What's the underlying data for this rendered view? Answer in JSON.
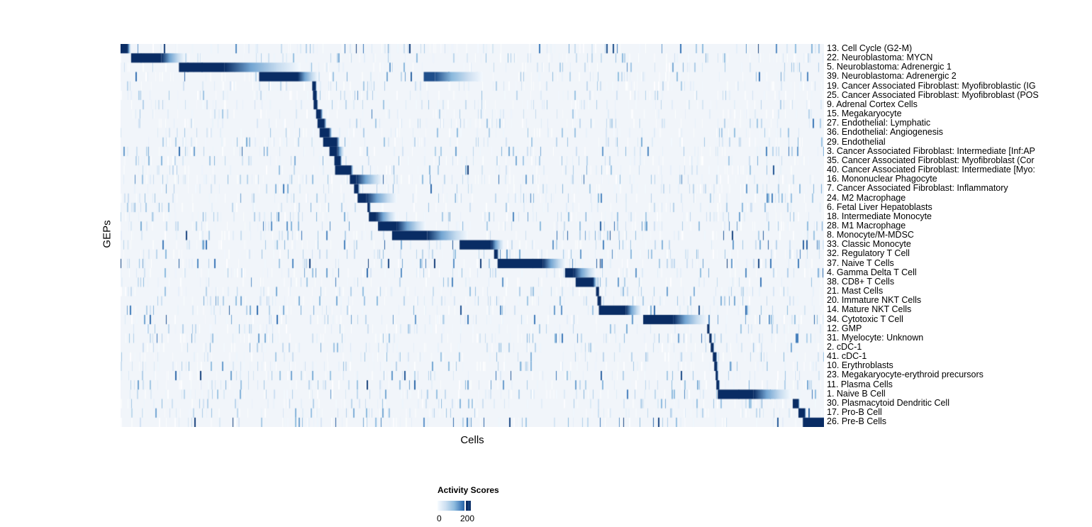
{
  "chart_data": {
    "type": "heatmap",
    "title": "",
    "xlabel": "Cells",
    "ylabel": "GEPs",
    "legend": {
      "title": "Activity Scores",
      "min_label": "0",
      "max_label": "200",
      "tick_values": [
        0,
        200
      ],
      "position": "bottom"
    },
    "colormap": {
      "name": "Blues",
      "low": "#f7fbff",
      "mid": "#8fbcdf",
      "high": "#092c64",
      "plot_background": "#f1f5fa"
    },
    "axes": {
      "grid": false,
      "x_ticks": [],
      "y_ticks": []
    },
    "rows": [
      {
        "label": "13. Cell Cycle (G2-M)",
        "block": [
          0.0,
          0.01,
          0.015
        ],
        "noise": 1.7
      },
      {
        "label": "22. Neuroblastoma: MYCN",
        "block": [
          0.015,
          0.058,
          0.092
        ],
        "noise": 0.9
      },
      {
        "label": "5. Neuroblastoma: Adrenergic 1",
        "block": [
          0.083,
          0.148,
          0.255
        ],
        "noise": 1.1
      },
      {
        "label": "39. Neuroblastoma: Adrenergic 2",
        "block": [
          0.197,
          0.252,
          0.281
        ],
        "noise": 1.3,
        "block2": [
          0.431,
          0.447,
          0.515
        ],
        "block2_v": 0.88
      },
      {
        "label": "19. Cancer Associated Fibroblast: Myofibroblastic (IG",
        "block": [
          0.2725,
          0.2775,
          0.279
        ],
        "noise": 0.7
      },
      {
        "label": "25. Cancer Associated Fibroblast: Myofibroblast (POS",
        "block": [
          0.2735,
          0.2785,
          0.28
        ],
        "noise": 0.8
      },
      {
        "label": "9. Adrenal Cortex Cells",
        "block": [
          0.2745,
          0.2795,
          0.281
        ],
        "noise": 0.7
      },
      {
        "label": "15. Megakaryocyte",
        "block": [
          0.278,
          0.285,
          0.288
        ],
        "noise": 0.7
      },
      {
        "label": "27. Endothelial: Lymphatic",
        "block": [
          0.28,
          0.29,
          0.293
        ],
        "noise": 0.8
      },
      {
        "label": "36. Endothelial: Angiogenesis",
        "block": [
          0.283,
          0.297,
          0.301
        ],
        "noise": 0.8
      },
      {
        "label": "29. Endothelial",
        "block": [
          0.288,
          0.308,
          0.312
        ],
        "noise": 0.9
      },
      {
        "label": "3. Cancer Associated Fibroblast: Intermediate [Inf:AP",
        "block": [
          0.297,
          0.308,
          0.318
        ],
        "noise": 1.3
      },
      {
        "label": "35. Cancer Associated Fibroblast: Myofibroblast (Cor",
        "block": [
          0.304,
          0.3125,
          0.315
        ],
        "noise": 0.9
      },
      {
        "label": "40. Cancer Associated Fibroblast: Intermediate [Myo:",
        "block": [
          0.305,
          0.328,
          0.331
        ],
        "noise": 0.9
      },
      {
        "label": "16. Mononuclear Phagocyte",
        "block": [
          0.326,
          0.335,
          0.373
        ],
        "noise": 1.2
      },
      {
        "label": "7. Cancer Associated Fibroblast: Inflammatory",
        "block": [
          0.332,
          0.338,
          0.34
        ],
        "noise": 1.0
      },
      {
        "label": "24. M2 Macrophage",
        "block": [
          0.337,
          0.349,
          0.393
        ],
        "noise": 1.2
      },
      {
        "label": "6. Fetal Liver Hepatoblasts",
        "block": [
          0.351,
          0.354,
          0.356
        ],
        "noise": 0.9
      },
      {
        "label": "18. Intermediate Monocyte",
        "block": [
          0.353,
          0.363,
          0.392
        ],
        "noise": 1.3
      },
      {
        "label": "28. M1 Macrophage",
        "block": [
          0.366,
          0.393,
          0.434
        ],
        "noise": 1.3
      },
      {
        "label": "8. Monocyte/M-MDSC",
        "block": [
          0.386,
          0.436,
          0.494
        ],
        "noise": 1.5
      },
      {
        "label": "33. Classic Monocyte",
        "block": [
          0.482,
          0.527,
          0.545
        ],
        "noise": 1.4
      },
      {
        "label": "32. Regulatory T Cell",
        "block": [
          0.531,
          0.536,
          0.538
        ],
        "noise": 1.2
      },
      {
        "label": "37. Naive T Cells",
        "block": [
          0.536,
          0.6,
          0.633
        ],
        "noise": 1.6
      },
      {
        "label": "4. Gamma Delta T Cell",
        "block": [
          0.632,
          0.644,
          0.676
        ],
        "noise": 1.3
      },
      {
        "label": "38. CD8+ T Cells",
        "block": [
          0.647,
          0.672,
          0.678
        ],
        "noise": 1.2
      },
      {
        "label": "21. Mast Cells",
        "block": [
          0.676,
          0.68,
          0.681
        ],
        "noise": 0.9
      },
      {
        "label": "20. Immature NKT Cells",
        "block": [
          0.678,
          0.683,
          0.684
        ],
        "noise": 1.0
      },
      {
        "label": "14. Mature NKT Cells",
        "block": [
          0.68,
          0.718,
          0.741
        ],
        "noise": 1.3
      },
      {
        "label": "34. Cytotoxic T Cell",
        "block": [
          0.743,
          0.786,
          0.834
        ],
        "noise": 1.3
      },
      {
        "label": "12. GMP",
        "block": [
          0.834,
          0.837,
          0.838
        ],
        "noise": 0.9
      },
      {
        "label": "31. Myelocyte: Unknown",
        "block": [
          0.837,
          0.84,
          0.841
        ],
        "noise": 1.3
      },
      {
        "label": "2. cDC-1",
        "block": [
          0.839,
          0.843,
          0.844
        ],
        "noise": 0.9
      },
      {
        "label": "41. cDC-1",
        "block": [
          0.842,
          0.847,
          0.848
        ],
        "noise": 0.9
      },
      {
        "label": "10. Erythroblasts",
        "block": [
          0.844,
          0.848,
          0.849
        ],
        "noise": 1.0
      },
      {
        "label": "23. Megakaryocyte-erythroid precursors",
        "block": [
          0.846,
          0.849,
          0.85
        ],
        "noise": 1.5
      },
      {
        "label": "11. Plasma Cells",
        "block": [
          0.847,
          0.851,
          0.852
        ],
        "noise": 1.0
      },
      {
        "label": "1. Naive B Cell",
        "block": [
          0.849,
          0.9,
          0.953
        ],
        "noise": 1.2
      },
      {
        "label": "30. Plasmacytoid Dendritic Cell",
        "block": [
          0.9556,
          0.9637,
          0.9657
        ],
        "noise": 0.9
      },
      {
        "label": "17. Pro-B Cell",
        "block": [
          0.9637,
          0.9728,
          0.9748
        ],
        "noise": 1.0
      },
      {
        "label": "26. Pre-B Cells",
        "block": [
          0.97,
          1.0,
          1.0
        ],
        "noise": 1.7
      }
    ]
  }
}
